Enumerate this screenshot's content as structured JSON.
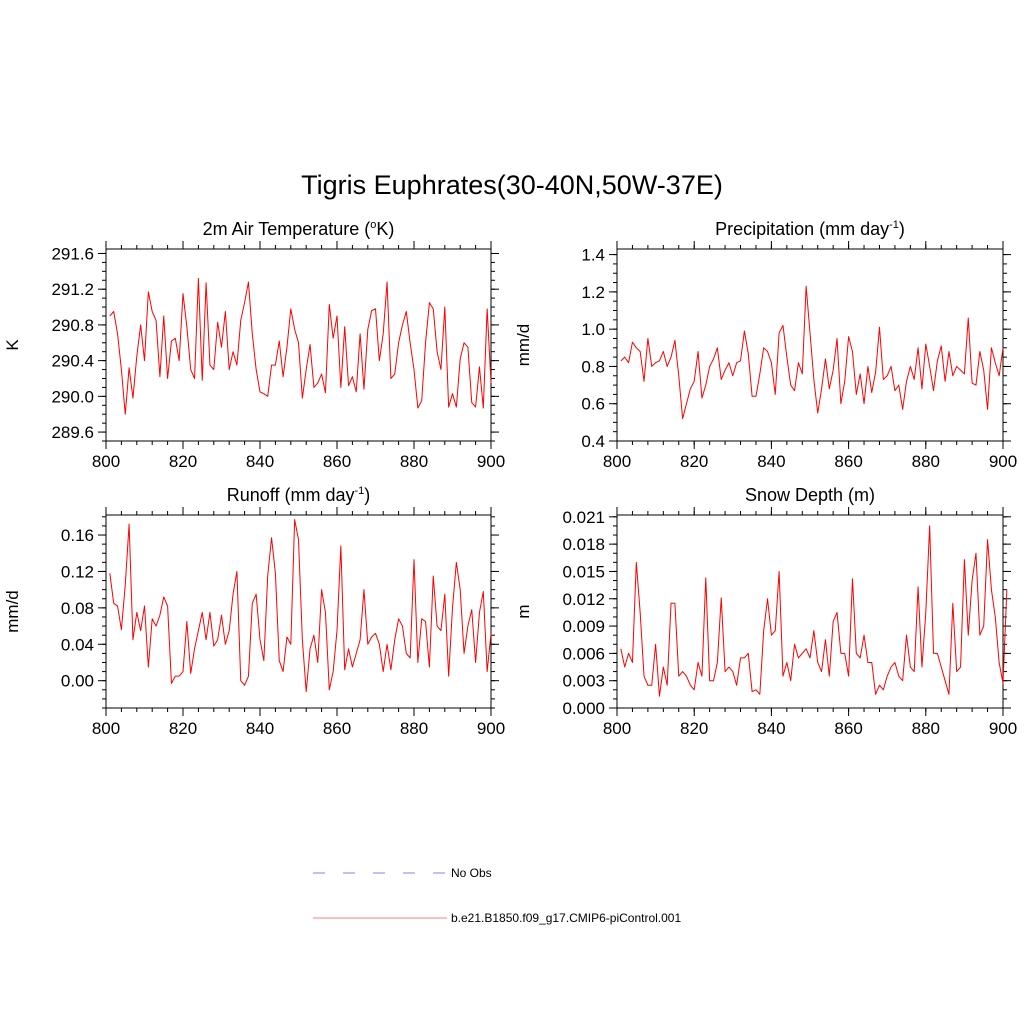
{
  "figure_title": "Tigris Euphrates(30-40N,50W-37E)",
  "series_color": "#ff0000",
  "obs_color": "#9999ff",
  "legend": [
    {
      "label": "No Obs",
      "style": "dashed",
      "color": "#9999ff"
    },
    {
      "label": "b.e21.B1850.f09_g17.CMIP6-piControl.001",
      "style": "solid",
      "color": "#ff9999"
    }
  ],
  "chart_data": [
    {
      "type": "line",
      "title": "2m Air Temperature (",
      "title_sup": "o",
      "title_tail": "K)",
      "ylabel": "K",
      "xlim": [
        800,
        900
      ],
      "ylim": [
        289.5,
        291.65
      ],
      "xticks": [
        "800",
        "820",
        "840",
        "860",
        "880",
        "900"
      ],
      "xtick_values": [
        800,
        820,
        840,
        860,
        880,
        900
      ],
      "yticks": [
        "289.6",
        "290.0",
        "290.4",
        "290.8",
        "291.2",
        "291.6"
      ],
      "ytick_values": [
        289.6,
        290.0,
        290.4,
        290.8,
        291.2,
        291.6
      ],
      "ymin_minor": 0.1,
      "series": [
        {
          "x_start": 801,
          "values": [
            290.9,
            290.95,
            290.7,
            290.3,
            289.8,
            290.32,
            289.98,
            290.45,
            290.8,
            290.4,
            291.17,
            290.95,
            290.85,
            290.22,
            290.9,
            290.2,
            290.62,
            290.65,
            290.4,
            291.15,
            290.78,
            290.3,
            290.2,
            291.32,
            290.18,
            291.27,
            290.35,
            290.3,
            290.83,
            290.55,
            290.95,
            290.3,
            290.5,
            290.35,
            290.85,
            291.05,
            291.28,
            290.7,
            290.3,
            290.05,
            290.03,
            290.0,
            290.35,
            290.35,
            290.62,
            290.22,
            290.55,
            290.98,
            290.75,
            290.6,
            289.98,
            290.3,
            290.58,
            290.1,
            290.15,
            290.25,
            290.04,
            291.03,
            290.65,
            290.9,
            290.1,
            290.78,
            290.12,
            290.22,
            290.05,
            290.7,
            290.08,
            290.75,
            290.96,
            290.98,
            290.4,
            290.7,
            291.28,
            290.2,
            290.25,
            290.6,
            290.8,
            290.95,
            290.6,
            290.3,
            289.87,
            289.95,
            290.6,
            291.05,
            290.98,
            290.5,
            290.3,
            291.0,
            289.88,
            290.03,
            289.88,
            290.42,
            290.6,
            290.55,
            289.93,
            289.88,
            290.33,
            289.87,
            290.98,
            290.15
          ]
        }
      ]
    },
    {
      "type": "line",
      "title": "Precipitation (mm day",
      "title_sup": "-1",
      "title_tail": ")",
      "ylabel": "mm/d",
      "xlim": [
        800,
        900
      ],
      "ylim": [
        0.4,
        1.43
      ],
      "xticks": [
        "800",
        "820",
        "840",
        "860",
        "880",
        "900"
      ],
      "xtick_values": [
        800,
        820,
        840,
        860,
        880,
        900
      ],
      "yticks": [
        "0.4",
        "0.6",
        "0.8",
        "1.0",
        "1.2",
        "1.4"
      ],
      "ytick_values": [
        0.4,
        0.6,
        0.8,
        1.0,
        1.2,
        1.4
      ],
      "ymin_minor": 0.05,
      "series": [
        {
          "x_start": 801,
          "values": [
            0.83,
            0.85,
            0.82,
            0.93,
            0.9,
            0.88,
            0.72,
            0.95,
            0.8,
            0.82,
            0.83,
            0.88,
            0.8,
            0.85,
            0.94,
            0.75,
            0.52,
            0.6,
            0.68,
            0.72,
            0.88,
            0.63,
            0.7,
            0.8,
            0.84,
            0.9,
            0.73,
            0.78,
            0.82,
            0.75,
            0.82,
            0.83,
            0.99,
            0.87,
            0.64,
            0.64,
            0.76,
            0.9,
            0.88,
            0.82,
            0.65,
            0.98,
            1.02,
            0.85,
            0.7,
            0.67,
            0.82,
            0.76,
            1.23,
            0.98,
            0.73,
            0.55,
            0.68,
            0.84,
            0.68,
            0.78,
            0.95,
            0.6,
            0.72,
            0.96,
            0.88,
            0.65,
            0.76,
            0.6,
            0.8,
            0.66,
            0.77,
            1.01,
            0.73,
            0.75,
            0.8,
            0.67,
            0.7,
            0.57,
            0.72,
            0.8,
            0.73,
            0.9,
            0.68,
            0.92,
            0.8,
            0.67,
            0.83,
            0.91,
            0.72,
            0.88,
            0.75,
            0.8,
            0.78,
            0.76,
            1.06,
            0.71,
            0.7,
            0.88,
            0.78,
            0.57,
            0.9,
            0.82,
            0.75,
            0.9
          ]
        }
      ]
    },
    {
      "type": "line",
      "title": "Runoff (mm day",
      "title_sup": "-1",
      "title_tail": ")",
      "ylabel": "mm/d",
      "xlim": [
        800,
        900
      ],
      "ylim": [
        -0.03,
        0.182
      ],
      "xticks": [
        "800",
        "820",
        "840",
        "860",
        "880",
        "900"
      ],
      "xtick_values": [
        800,
        820,
        840,
        860,
        880,
        900
      ],
      "yticks": [
        "0.00",
        "0.04",
        "0.08",
        "0.12",
        "0.16"
      ],
      "ytick_values": [
        0.0,
        0.04,
        0.08,
        0.12,
        0.16
      ],
      "ymin_minor": 0.01,
      "series": [
        {
          "x_start": 801,
          "values": [
            0.118,
            0.085,
            0.082,
            0.056,
            0.105,
            0.172,
            0.045,
            0.075,
            0.055,
            0.082,
            0.015,
            0.068,
            0.06,
            0.072,
            0.092,
            0.082,
            -0.003,
            0.005,
            0.005,
            0.01,
            0.065,
            0.008,
            0.035,
            0.055,
            0.075,
            0.045,
            0.075,
            0.038,
            0.045,
            0.072,
            0.04,
            0.055,
            0.095,
            0.12,
            0.0,
            -0.005,
            0.005,
            0.085,
            0.095,
            0.045,
            0.022,
            0.115,
            0.157,
            0.118,
            0.022,
            0.01,
            0.048,
            0.04,
            0.177,
            0.155,
            0.045,
            -0.012,
            0.035,
            0.05,
            0.02,
            0.1,
            0.075,
            -0.01,
            0.01,
            0.055,
            0.148,
            0.012,
            0.035,
            0.015,
            0.03,
            0.045,
            0.1,
            0.04,
            0.048,
            0.052,
            0.04,
            0.01,
            0.04,
            0.012,
            0.045,
            0.068,
            0.06,
            0.03,
            0.025,
            0.133,
            0.02,
            0.068,
            0.065,
            0.015,
            0.115,
            0.06,
            0.055,
            0.095,
            0.005,
            0.08,
            0.13,
            0.1,
            0.03,
            0.06,
            0.078,
            0.02,
            0.075,
            0.098,
            0.01,
            0.052
          ]
        }
      ]
    },
    {
      "type": "line",
      "title": "Snow Depth (m)",
      "title_sup": "",
      "title_tail": "",
      "ylabel": "m",
      "xlim": [
        800,
        900
      ],
      "ylim": [
        0.0,
        0.0212
      ],
      "xticks": [
        "800",
        "820",
        "840",
        "860",
        "880",
        "900"
      ],
      "xtick_values": [
        800,
        820,
        840,
        860,
        880,
        900
      ],
      "yticks": [
        "0.000",
        "0.003",
        "0.006",
        "0.009",
        "0.012",
        "0.015",
        "0.018",
        "0.021"
      ],
      "ytick_values": [
        0.0,
        0.003,
        0.006,
        0.009,
        0.012,
        0.015,
        0.018,
        0.021
      ],
      "ymin_minor": 0.001,
      "series": [
        {
          "x_start": 801,
          "values": [
            0.0065,
            0.0045,
            0.006,
            0.005,
            0.016,
            0.0105,
            0.0035,
            0.0025,
            0.0025,
            0.007,
            0.0013,
            0.0045,
            0.0025,
            0.0115,
            0.0115,
            0.0035,
            0.004,
            0.0035,
            0.0025,
            0.002,
            0.005,
            0.0035,
            0.0143,
            0.003,
            0.003,
            0.005,
            0.0121,
            0.004,
            0.0045,
            0.004,
            0.0025,
            0.0055,
            0.0055,
            0.006,
            0.0018,
            0.002,
            0.0015,
            0.0085,
            0.012,
            0.008,
            0.0085,
            0.015,
            0.0035,
            0.005,
            0.003,
            0.007,
            0.0055,
            0.006,
            0.0065,
            0.0055,
            0.0085,
            0.005,
            0.004,
            0.0075,
            0.0035,
            0.0095,
            0.0105,
            0.006,
            0.006,
            0.0035,
            0.0142,
            0.006,
            0.0055,
            0.008,
            0.005,
            0.005,
            0.0015,
            0.0025,
            0.002,
            0.0035,
            0.0045,
            0.005,
            0.0035,
            0.003,
            0.008,
            0.0045,
            0.004,
            0.0133,
            0.0045,
            0.0105,
            0.02,
            0.006,
            0.006,
            0.0045,
            0.003,
            0.0015,
            0.0115,
            0.004,
            0.0045,
            0.0163,
            0.008,
            0.014,
            0.017,
            0.008,
            0.009,
            0.0185,
            0.013,
            0.01,
            0.005,
            0.0027,
            0.013
          ]
        }
      ]
    }
  ]
}
